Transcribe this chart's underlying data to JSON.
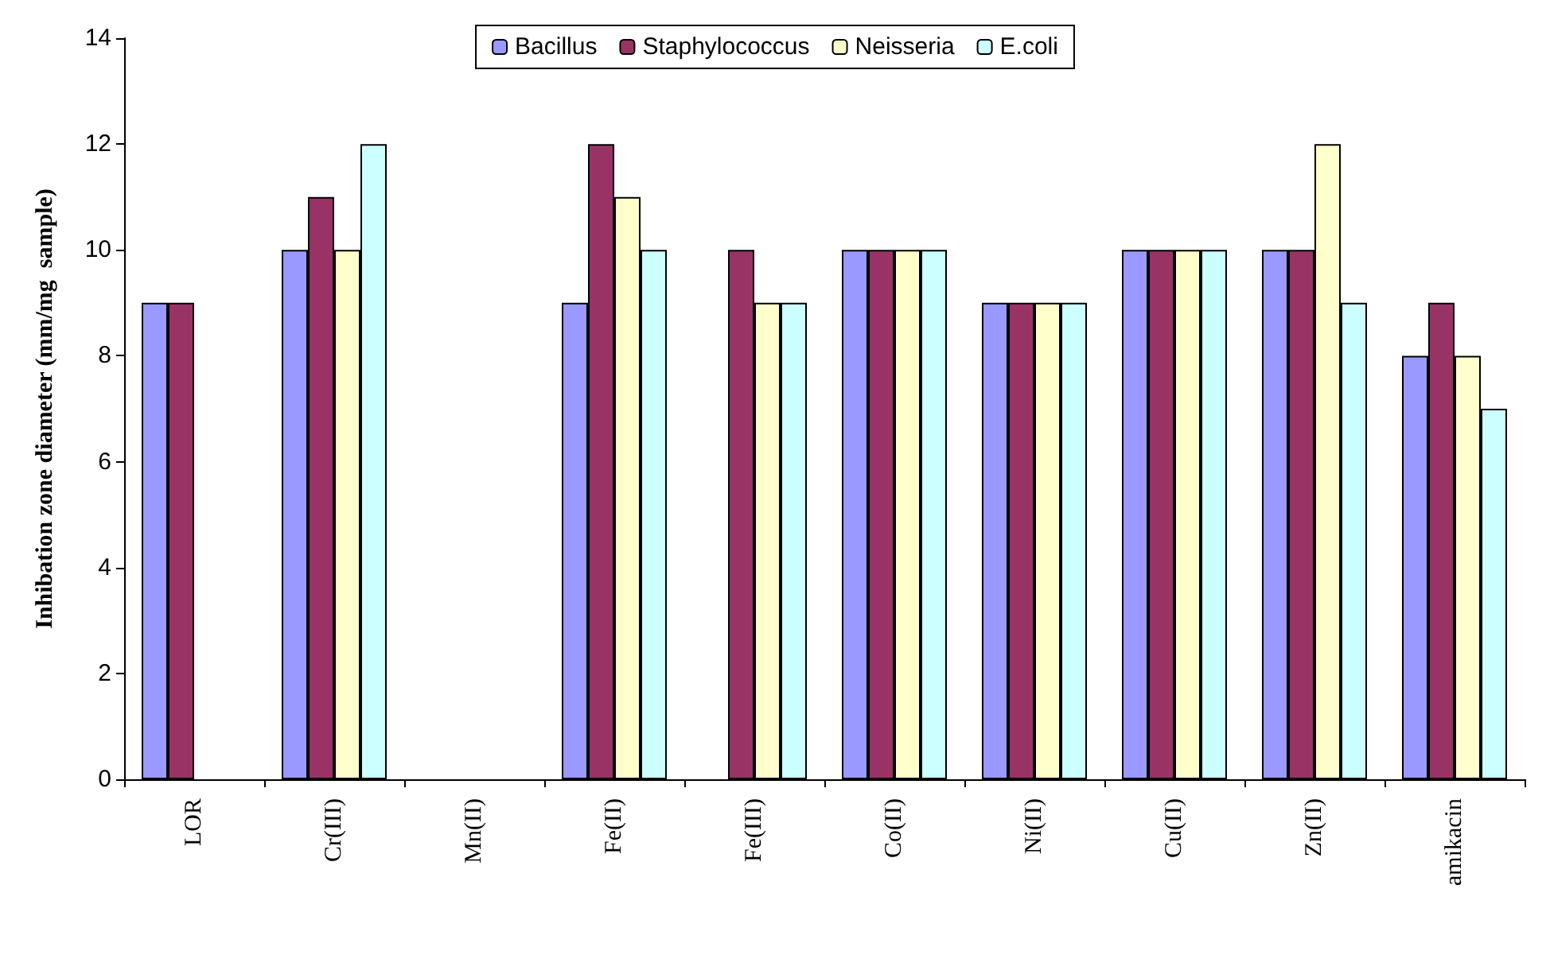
{
  "chart_data": {
    "type": "bar",
    "ylabel": "Inhibation zone diameter (mm/mg  sample)",
    "categories": [
      "LOR",
      "Cr(III)",
      "Mn(II)",
      "Fe(II)",
      "Fe(III)",
      "Co(II)",
      "Ni(II)",
      "Cu(II)",
      "Zn(II)",
      "amikacin"
    ],
    "series": [
      {
        "name": "Bacillus",
        "color": "#9999ff",
        "values": [
          9,
          10,
          null,
          9,
          null,
          10,
          9,
          10,
          10,
          8
        ]
      },
      {
        "name": "Staphylococcus",
        "color": "#993366",
        "values": [
          9,
          11,
          null,
          12,
          10,
          10,
          9,
          10,
          10,
          9
        ]
      },
      {
        "name": "Neisseria",
        "color": "#ffffcc",
        "values": [
          null,
          10,
          null,
          11,
          9,
          10,
          9,
          10,
          12,
          8
        ]
      },
      {
        "name": "E.coli",
        "color": "#ccffff",
        "values": [
          null,
          12,
          null,
          10,
          9,
          10,
          9,
          10,
          9,
          7
        ]
      }
    ],
    "ylim": [
      0,
      14
    ],
    "yticks": [
      0,
      2,
      4,
      6,
      8,
      10,
      12,
      14
    ],
    "grid": false,
    "legend": "top"
  }
}
